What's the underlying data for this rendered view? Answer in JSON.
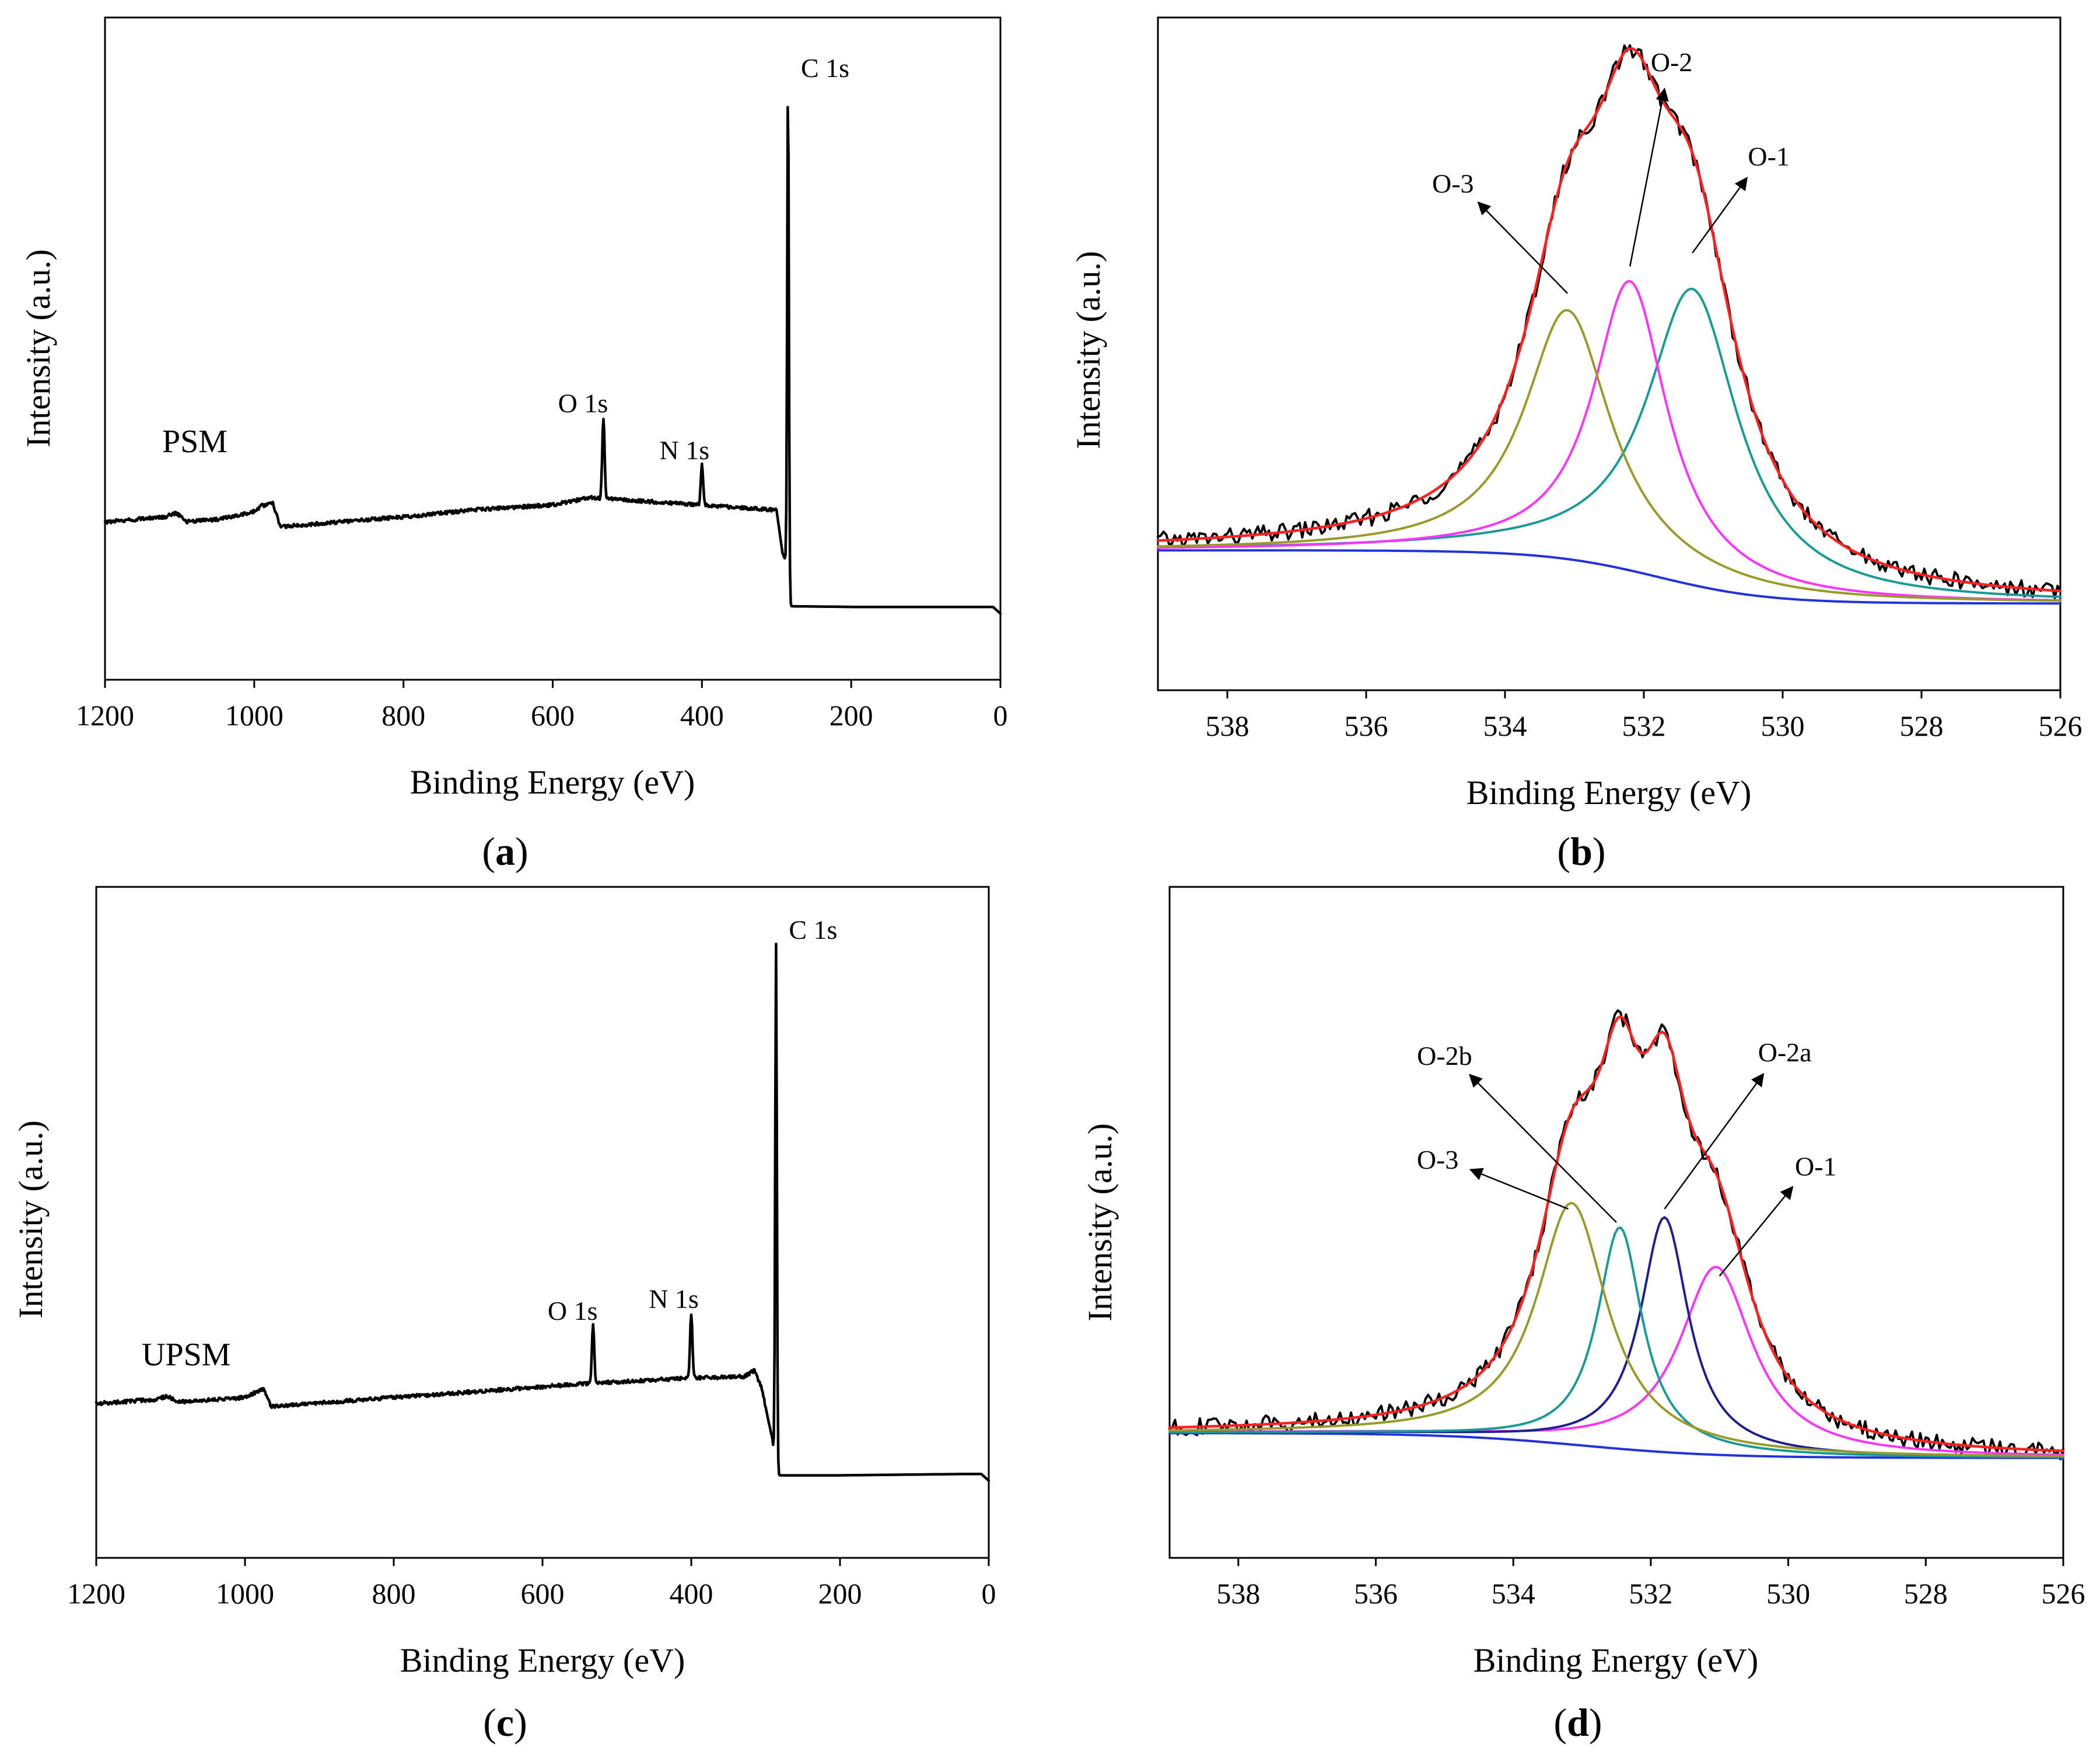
{
  "chart_data": [
    {
      "id": "a",
      "type": "line",
      "caption": "a",
      "sample_label": "PSM",
      "xlabel": "Binding Energy (eV)",
      "ylabel": "Intensity (a.u.)",
      "xlim": [
        1200,
        0
      ],
      "ylim": [
        0,
        100
      ],
      "x_ticks": [
        1200,
        1000,
        800,
        600,
        400,
        200,
        0
      ],
      "x_tick_labels": [
        "1200",
        "1000",
        "800",
        "600",
        "400",
        "200",
        "0"
      ],
      "survey": {
        "baseline": [
          [
            1200,
            23.8
          ],
          [
            1120,
            24.6
          ],
          [
            1105,
            25.2
          ],
          [
            1090,
            23.9
          ],
          [
            1050,
            24.2
          ],
          [
            1000,
            25.4
          ],
          [
            990,
            26.3
          ],
          [
            975,
            26.6
          ],
          [
            965,
            23.1
          ],
          [
            900,
            23.7
          ],
          [
            800,
            24.6
          ],
          [
            700,
            25.7
          ],
          [
            600,
            26.4
          ],
          [
            550,
            27.5
          ],
          [
            300,
            25.6
          ],
          [
            292,
            19.1
          ],
          [
            286,
            17.5
          ],
          [
            283,
            11.1
          ],
          [
            200,
            11.0
          ],
          [
            10,
            11.0
          ],
          [
            0,
            10.0
          ]
        ],
        "peaks": [
          {
            "label": "C 1s",
            "position": 284.6,
            "height": 90.2
          },
          {
            "label": "O 1s",
            "position": 532,
            "height": 39.6
          },
          {
            "label": "N 1s",
            "position": 400,
            "height": 32.5
          }
        ]
      }
    },
    {
      "id": "b",
      "type": "line",
      "caption": "b",
      "xlabel": "Binding Energy (eV)",
      "ylabel": "Intensity (a.u.)",
      "xlim": [
        539,
        526
      ],
      "ylim": [
        0,
        100
      ],
      "x_ticks": [
        538,
        536,
        534,
        532,
        530,
        528,
        526
      ],
      "x_tick_labels": [
        "538",
        "536",
        "534",
        "532",
        "530",
        "528",
        "526"
      ],
      "background": {
        "left": 20.8,
        "right": 12.9,
        "center": 531.8,
        "width": 0.8
      },
      "components": [
        {
          "name": "O-1",
          "center": 531.3,
          "height": 44.0,
          "fwhm": 1.6,
          "color": "#1a9a96"
        },
        {
          "name": "O-2",
          "center": 532.2,
          "height": 43.0,
          "fwhm": 1.3,
          "color": "#ff33ff"
        },
        {
          "name": "O-3",
          "center": 533.1,
          "height": 37.0,
          "fwhm": 1.5,
          "color": "#9a9a2a"
        }
      ],
      "envelope_color": "#ff2020",
      "background_color": "#2233dd",
      "raw_color": "#000000",
      "annotations": [
        {
          "text": "O-3",
          "label_at": [
            534.75,
            74
          ],
          "arrow_to": [
            533.1,
            59
          ]
        },
        {
          "text": "O-2",
          "label_at": [
            531.6,
            92
          ],
          "arrow_to": [
            532.2,
            63
          ]
        },
        {
          "text": "O-1",
          "label_at": [
            530.2,
            78
          ],
          "arrow_to": [
            531.3,
            65
          ]
        }
      ]
    },
    {
      "id": "c",
      "type": "line",
      "caption": "c",
      "sample_label": "UPSM",
      "xlabel": "Binding Energy (eV)",
      "ylabel": "Intensity (a.u.)",
      "xlim": [
        1200,
        0
      ],
      "ylim": [
        0,
        100
      ],
      "x_ticks": [
        1200,
        1000,
        800,
        600,
        400,
        200,
        0
      ],
      "x_tick_labels": [
        "1200",
        "1000",
        "800",
        "600",
        "400",
        "200",
        "0"
      ],
      "survey": {
        "baseline": [
          [
            1200,
            23.0
          ],
          [
            1120,
            23.6
          ],
          [
            1105,
            24.1
          ],
          [
            1090,
            23.2
          ],
          [
            1000,
            23.9
          ],
          [
            985,
            24.7
          ],
          [
            975,
            25.1
          ],
          [
            965,
            22.6
          ],
          [
            900,
            23.1
          ],
          [
            800,
            23.9
          ],
          [
            700,
            24.7
          ],
          [
            600,
            25.5
          ],
          [
            540,
            26.0
          ],
          [
            400,
            26.8
          ],
          [
            330,
            27.0
          ],
          [
            315,
            27.9
          ],
          [
            305,
            25.2
          ],
          [
            296,
            20.3
          ],
          [
            291,
            17.8
          ],
          [
            286,
            12.3
          ],
          [
            200,
            12.3
          ],
          [
            30,
            12.5
          ],
          [
            10,
            12.5
          ],
          [
            0,
            11.5
          ]
        ],
        "peaks": [
          {
            "label": "C 1s",
            "position": 286.0,
            "height": 91.5
          },
          {
            "label": "O 1s",
            "position": 532,
            "height": 34.7
          },
          {
            "label": "N 1s",
            "position": 400,
            "height": 36.5
          }
        ]
      }
    },
    {
      "id": "d",
      "type": "line",
      "caption": "d",
      "xlabel": "Binding Energy (eV)",
      "ylabel": "Intensity (a.u.)",
      "xlim": [
        539,
        526
      ],
      "ylim": [
        0,
        100
      ],
      "x_ticks": [
        538,
        536,
        534,
        532,
        530,
        528,
        526
      ],
      "x_tick_labels": [
        "538",
        "536",
        "534",
        "532",
        "530",
        "528",
        "526"
      ],
      "background": {
        "left": 18.6,
        "right": 14.9,
        "center": 533.0,
        "width": 1.0
      },
      "components": [
        {
          "name": "O-1",
          "center": 531.05,
          "height": 28.0,
          "fwhm": 1.3,
          "color": "#ff33ff"
        },
        {
          "name": "O-2a",
          "center": 531.8,
          "height": 35.0,
          "fwhm": 0.85,
          "color": "#1f1f8f"
        },
        {
          "name": "O-2b",
          "center": 532.45,
          "height": 33.0,
          "fwhm": 0.8,
          "color": "#1a9a96"
        },
        {
          "name": "O-3",
          "center": 533.15,
          "height": 36.0,
          "fwhm": 1.25,
          "color": "#9a9a2a"
        }
      ],
      "envelope_color": "#ff2020",
      "background_color": "#2233dd",
      "raw_color": "#000000",
      "annotations": [
        {
          "text": "O-2b",
          "label_at": [
            535.0,
            73.5
          ],
          "arrow_to": [
            532.5,
            50
          ]
        },
        {
          "text": "O-3",
          "label_at": [
            535.1,
            58
          ],
          "arrow_to": [
            533.2,
            52
          ]
        },
        {
          "text": "O-2a",
          "label_at": [
            530.05,
            74
          ],
          "arrow_to": [
            531.8,
            52
          ]
        },
        {
          "text": "O-1",
          "label_at": [
            529.6,
            57
          ],
          "arrow_to": [
            531.0,
            42
          ]
        }
      ]
    }
  ]
}
